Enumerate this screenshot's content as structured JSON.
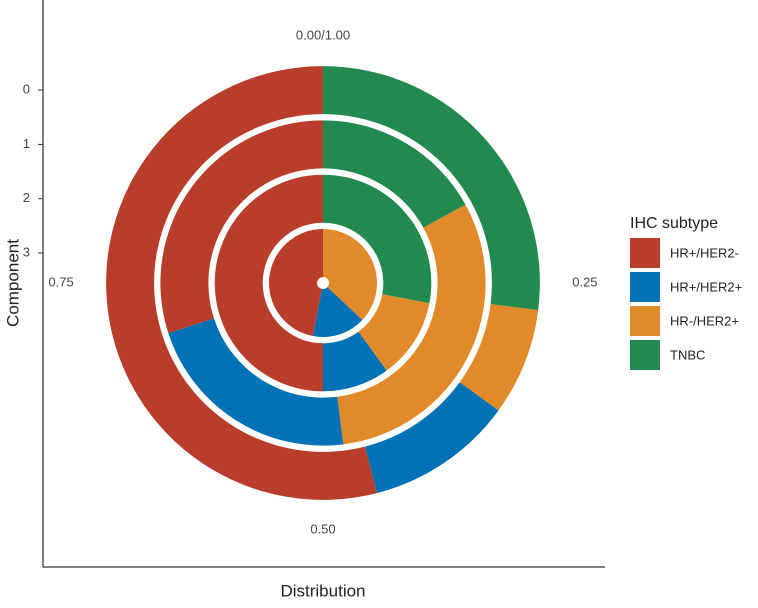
{
  "chart_data": {
    "type": "polar-stacked-bar",
    "x_label": "Distribution",
    "y_label": "Component",
    "categories": [
      "0",
      "1",
      "2",
      "3"
    ],
    "series": [
      {
        "name": "HR+/HER2-",
        "color": "#b83d2b",
        "values": [
          0.54,
          0.3,
          0.5,
          0.47
        ]
      },
      {
        "name": "HR+/HER2+",
        "color": "#0072b5",
        "values": [
          0.11,
          0.22,
          0.1,
          0.16
        ]
      },
      {
        "name": "HR-/HER2+",
        "color": "#e08a2a",
        "values": [
          0.08,
          0.31,
          0.12,
          0.37
        ]
      },
      {
        "name": "TNBC",
        "color": "#228a4e",
        "values": [
          0.27,
          0.17,
          0.28,
          0
        ]
      }
    ],
    "stack_order": "reverse",
    "xlim": [
      0,
      1
    ],
    "xticks": [
      {
        "value": 0,
        "label": "0.00/1.00"
      },
      {
        "value": 0.25,
        "label": "0.25"
      },
      {
        "value": 0.5,
        "label": "0.50"
      },
      {
        "value": 0.75,
        "label": "0.75"
      }
    ],
    "legend_title": "IHC subtype",
    "legend_position": "right"
  }
}
